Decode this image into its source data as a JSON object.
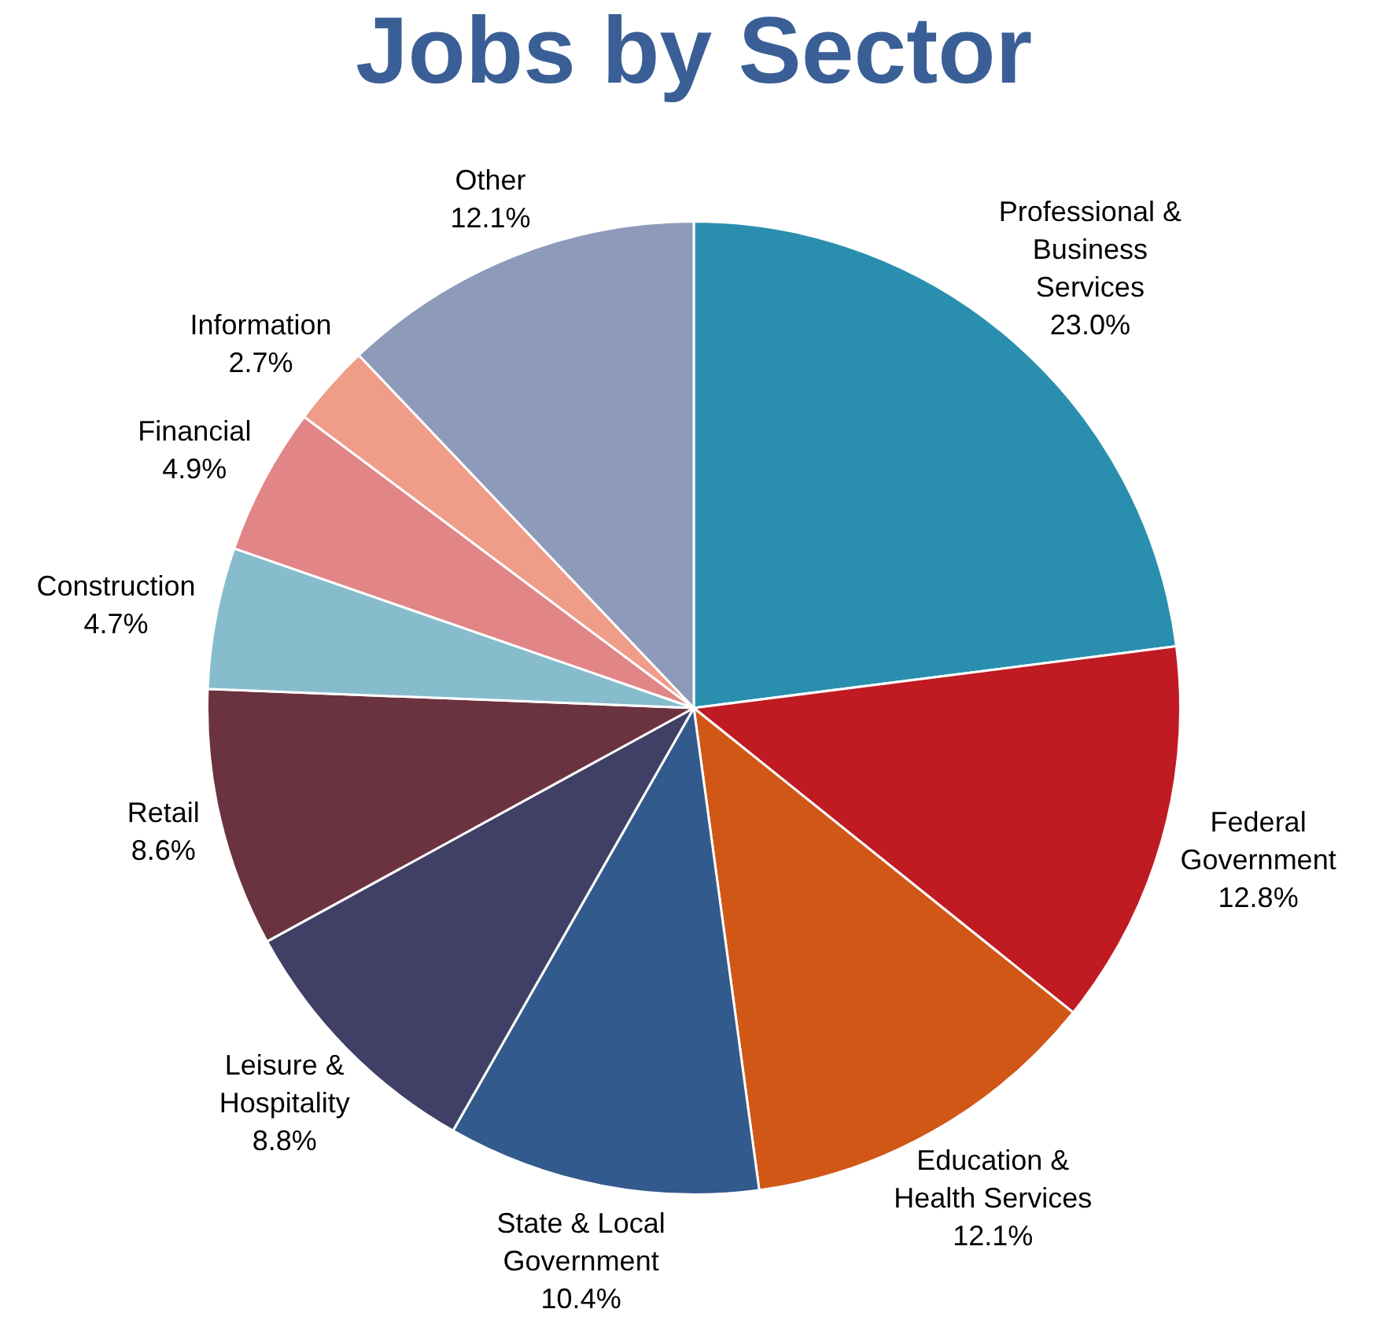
{
  "chart_data": {
    "type": "pie",
    "title": "Jobs by Sector",
    "categories": [
      "Professional & Business Services",
      "Federal Government",
      "Education & Health Services",
      "State & Local Government",
      "Leisure & Hospitality",
      "Retail",
      "Construction",
      "Financial",
      "Information",
      "Other"
    ],
    "values": [
      23.0,
      12.8,
      12.1,
      10.4,
      8.8,
      8.6,
      4.7,
      4.9,
      2.7,
      12.1
    ],
    "value_labels": [
      "23.0%",
      "12.8%",
      "12.1%",
      "10.4%",
      "8.8%",
      "8.6%",
      "4.7%",
      "4.9%",
      "2.7%",
      "12.1%"
    ],
    "colors": [
      "#2a8fae",
      "#c01a22",
      "#d05716",
      "#335a8c",
      "#403f66",
      "#6b3340",
      "#87bccd",
      "#e18587",
      "#ef9c88",
      "#8d9ab9"
    ],
    "legend": false
  }
}
